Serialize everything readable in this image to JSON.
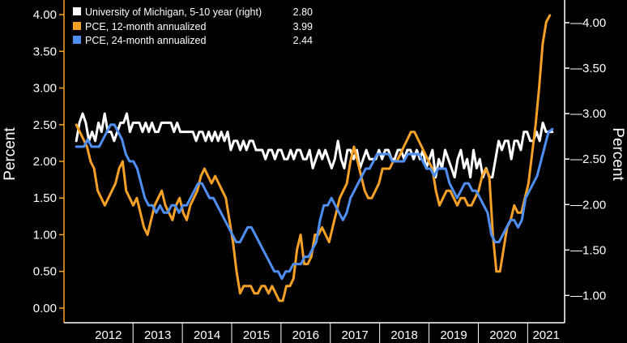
{
  "chart_data": {
    "type": "line",
    "ylabel_left": "Percent",
    "ylabel_right": "Percent",
    "left_axis": {
      "range": [
        -0.2,
        4.2
      ],
      "ticks": [
        "0.00",
        "0.50",
        "1.00",
        "1.50",
        "2.00",
        "2.50",
        "3.00",
        "3.50",
        "4.00"
      ]
    },
    "right_axis": {
      "range": [
        0.7,
        4.25
      ],
      "ticks": [
        "1.00",
        "1.50",
        "2.00",
        "2.50",
        "3.00",
        "3.50",
        "4.00"
      ]
    },
    "x_categories": [
      "2012",
      "2013",
      "2014",
      "2015",
      "2016",
      "2017",
      "2018",
      "2019",
      "2020",
      "2021"
    ],
    "legend": [
      {
        "label": "University of Michigan, 5-10 year (right)",
        "value": "2.80",
        "color": "#ffffff"
      },
      {
        "label": "PCE, 12-month annualized",
        "value": "3.99",
        "color": "#f5a127"
      },
      {
        "label": "PCE, 24-month annualized",
        "value": "2.44",
        "color": "#4f8ff2"
      }
    ],
    "series": [
      {
        "name": "University of Michigan, 5-10 year (right)",
        "axis": "right",
        "color": "#ffffff",
        "x_start": 2011.85,
        "x_end": 2021.5,
        "values": [
          2.7,
          2.9,
          3.0,
          2.9,
          2.7,
          2.8,
          2.7,
          2.9,
          2.8,
          3.0,
          2.8,
          2.8,
          2.7,
          2.8,
          2.9,
          2.9,
          3.0,
          2.8,
          2.9,
          2.9,
          2.9,
          2.8,
          2.9,
          2.8,
          2.9,
          2.8,
          2.8,
          2.9,
          2.9,
          2.9,
          2.9,
          2.8,
          2.9,
          2.8,
          2.8,
          2.8,
          2.8,
          2.8,
          2.7,
          2.8,
          2.8,
          2.7,
          2.8,
          2.7,
          2.8,
          2.7,
          2.8,
          2.7,
          2.8,
          2.6,
          2.7,
          2.7,
          2.6,
          2.7,
          2.6,
          2.7,
          2.7,
          2.6,
          2.6,
          2.6,
          2.5,
          2.6,
          2.6,
          2.5,
          2.6,
          2.6,
          2.5,
          2.5,
          2.6,
          2.5,
          2.6,
          2.6,
          2.5,
          2.5,
          2.6,
          2.4,
          2.5,
          2.6,
          2.5,
          2.6,
          2.5,
          2.4,
          2.5,
          2.7,
          2.5,
          2.4,
          2.6,
          2.6,
          2.5,
          2.6,
          2.4,
          2.5,
          2.6,
          2.5,
          2.5,
          2.5,
          2.6,
          2.5,
          2.6,
          2.6,
          2.5,
          2.5,
          2.6,
          2.6,
          2.5,
          2.6,
          2.6,
          2.5,
          2.6,
          2.5,
          2.6,
          2.4,
          2.5,
          2.6,
          2.3,
          2.5,
          2.4,
          2.6,
          2.5,
          2.4,
          2.3,
          2.5,
          2.6,
          2.4,
          2.5,
          2.3,
          2.6,
          2.4,
          2.5,
          2.3,
          2.4,
          2.3,
          2.3,
          2.5,
          2.7,
          2.6,
          2.7,
          2.7,
          2.5,
          2.7,
          2.7,
          2.6,
          2.8,
          2.8,
          2.7,
          2.7,
          2.8,
          2.7,
          2.9,
          2.8,
          2.8,
          2.8
        ]
      },
      {
        "name": "PCE, 12-month annualized",
        "axis": "left",
        "color": "#f5a127",
        "x_start": 2011.85,
        "x_end": 2021.45,
        "values": [
          2.5,
          2.4,
          2.3,
          2.2,
          2.0,
          1.9,
          1.6,
          1.5,
          1.4,
          1.5,
          1.6,
          1.7,
          1.9,
          2.0,
          1.6,
          1.5,
          1.4,
          1.5,
          1.3,
          1.1,
          1.0,
          1.2,
          1.4,
          1.5,
          1.6,
          1.4,
          1.3,
          1.2,
          1.4,
          1.5,
          1.3,
          1.2,
          1.4,
          1.5,
          1.6,
          1.8,
          1.9,
          1.8,
          1.7,
          1.8,
          1.7,
          1.6,
          1.5,
          1.2,
          0.9,
          0.5,
          0.2,
          0.3,
          0.3,
          0.3,
          0.2,
          0.2,
          0.3,
          0.3,
          0.2,
          0.3,
          0.2,
          0.1,
          0.1,
          0.3,
          0.3,
          0.4,
          0.8,
          1.0,
          0.6,
          0.6,
          0.7,
          1.0,
          1.0,
          1.1,
          1.0,
          0.9,
          1.1,
          1.3,
          1.5,
          1.6,
          1.7,
          2.0,
          2.2,
          2.0,
          1.8,
          1.6,
          1.5,
          1.5,
          1.6,
          1.7,
          1.9,
          1.9,
          1.9,
          2.0,
          2.0,
          2.1,
          2.2,
          2.3,
          2.4,
          2.4,
          2.3,
          2.2,
          2.1,
          2.0,
          1.9,
          1.6,
          1.4,
          1.5,
          1.6,
          1.6,
          1.5,
          1.4,
          1.5,
          1.5,
          1.4,
          1.4,
          1.5,
          1.6,
          1.8,
          1.9,
          1.8,
          1.0,
          0.5,
          0.5,
          0.8,
          1.1,
          1.2,
          1.4,
          1.3,
          1.3,
          1.5,
          1.7,
          2.1,
          2.5,
          3.0,
          3.6,
          3.9,
          3.99
        ]
      },
      {
        "name": "PCE, 24-month annualized",
        "axis": "left",
        "color": "#4f8ff2",
        "x_start": 2011.85,
        "x_end": 2021.5,
        "values": [
          2.2,
          2.2,
          2.2,
          2.3,
          2.2,
          2.2,
          2.2,
          2.3,
          2.4,
          2.5,
          2.5,
          2.4,
          2.3,
          2.1,
          2.0,
          2.0,
          1.9,
          1.7,
          1.5,
          1.4,
          1.4,
          1.3,
          1.4,
          1.3,
          1.3,
          1.4,
          1.4,
          1.3,
          1.4,
          1.4,
          1.5,
          1.6,
          1.7,
          1.7,
          1.6,
          1.5,
          1.5,
          1.4,
          1.3,
          1.2,
          1.1,
          1.0,
          0.9,
          0.9,
          1.0,
          1.1,
          1.1,
          1.0,
          0.9,
          0.8,
          0.7,
          0.6,
          0.5,
          0.5,
          0.4,
          0.5,
          0.5,
          0.6,
          0.6,
          0.6,
          0.7,
          0.7,
          0.8,
          0.9,
          1.2,
          1.4,
          1.4,
          1.5,
          1.4,
          1.3,
          1.2,
          1.3,
          1.5,
          1.6,
          1.7,
          1.8,
          1.9,
          1.9,
          2.0,
          2.1,
          2.1,
          2.1,
          2.1,
          2.0,
          2.0,
          2.0,
          2.0,
          2.1,
          2.1,
          2.1,
          2.1,
          2.0,
          1.9,
          1.9,
          1.8,
          1.9,
          1.9,
          1.9,
          1.7,
          1.6,
          1.5,
          1.6,
          1.7,
          1.7,
          1.6,
          1.6,
          1.5,
          1.4,
          1.3,
          1.0,
          0.9,
          0.9,
          1.0,
          1.1,
          1.2,
          1.2,
          1.1,
          1.2,
          1.5,
          1.6,
          1.7,
          1.8,
          2.0,
          2.2,
          2.4,
          2.44
        ]
      }
    ]
  }
}
